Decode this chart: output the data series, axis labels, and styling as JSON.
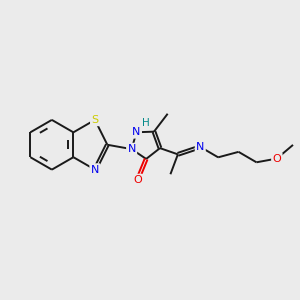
{
  "background_color": "#ebebeb",
  "bond_color": "#1a1a1a",
  "atom_colors": {
    "N": "#0000ee",
    "O": "#ee0000",
    "S": "#cccc00",
    "H": "#008888",
    "C": "#1a1a1a"
  },
  "figsize": [
    3.0,
    3.0
  ],
  "dpi": 100
}
